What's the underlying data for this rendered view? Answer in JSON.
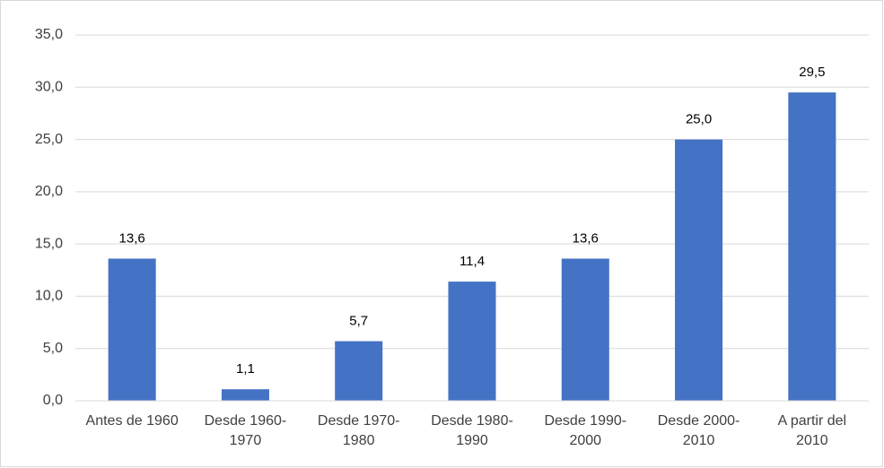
{
  "chart_data": {
    "type": "bar",
    "categories": [
      "Antes de 1960",
      "Desde 1960-1970",
      "Desde 1970-1980",
      "Desde 1980-1990",
      "Desde 1990-2000",
      "Desde 2000-2010",
      "A partir del 2010"
    ],
    "values": [
      13.6,
      1.1,
      5.7,
      11.4,
      13.6,
      25.0,
      29.5
    ],
    "value_labels": [
      "13,6",
      "1,1",
      "5,7",
      "11,4",
      "13,6",
      "25,0",
      "29,5"
    ],
    "color": "#4472c4",
    "ylim": [
      0,
      35
    ],
    "yticks": [
      {
        "value": 0,
        "label": "0,0"
      },
      {
        "value": 5,
        "label": "5,0"
      },
      {
        "value": 10,
        "label": "10,0"
      },
      {
        "value": 15,
        "label": "15,0"
      },
      {
        "value": 20,
        "label": "20,0"
      },
      {
        "value": 25,
        "label": "25,0"
      },
      {
        "value": 30,
        "label": "30,0"
      },
      {
        "value": 35,
        "label": "35,0"
      }
    ],
    "grid": true
  }
}
